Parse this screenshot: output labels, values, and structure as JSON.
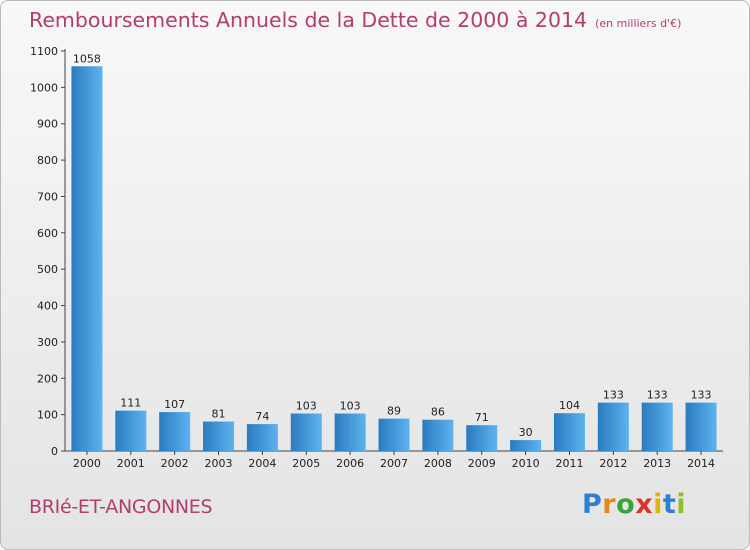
{
  "chart_data": {
    "type": "bar",
    "title": "Remboursements Annuels de la Dette de 2000 à 2014",
    "unit": "(en milliers d'€)",
    "categories": [
      "2000",
      "2001",
      "2002",
      "2003",
      "2004",
      "2005",
      "2006",
      "2007",
      "2008",
      "2009",
      "2010",
      "2011",
      "2012",
      "2013",
      "2014"
    ],
    "values": [
      1058,
      111,
      107,
      81,
      74,
      103,
      103,
      89,
      86,
      71,
      30,
      104,
      133,
      133,
      133
    ],
    "value_labels": [
      "1058",
      "111",
      "107",
      "81",
      "74",
      "103",
      "103",
      "89",
      "86",
      "71",
      "30",
      "104",
      "133",
      "133",
      "133"
    ],
    "ylim": [
      0,
      1100
    ],
    "yticks": [
      0,
      100,
      200,
      300,
      400,
      500,
      600,
      700,
      800,
      900,
      1000,
      1100
    ],
    "ytick_labels": [
      "0",
      "100",
      "200",
      "300",
      "400",
      "500",
      "600",
      "700",
      "800",
      "900",
      "1000",
      "1100"
    ],
    "grid": false,
    "xlabel": "",
    "ylabel": "",
    "colors": {
      "bar_dark": "#2a7bbf",
      "bar_light": "#5db3ee",
      "title": "#b33d6b"
    }
  },
  "commune": "BRIé-ET-ANGONNES",
  "brand": {
    "letters": [
      "P",
      "r",
      "o",
      "x",
      "i",
      "t",
      "i"
    ]
  }
}
